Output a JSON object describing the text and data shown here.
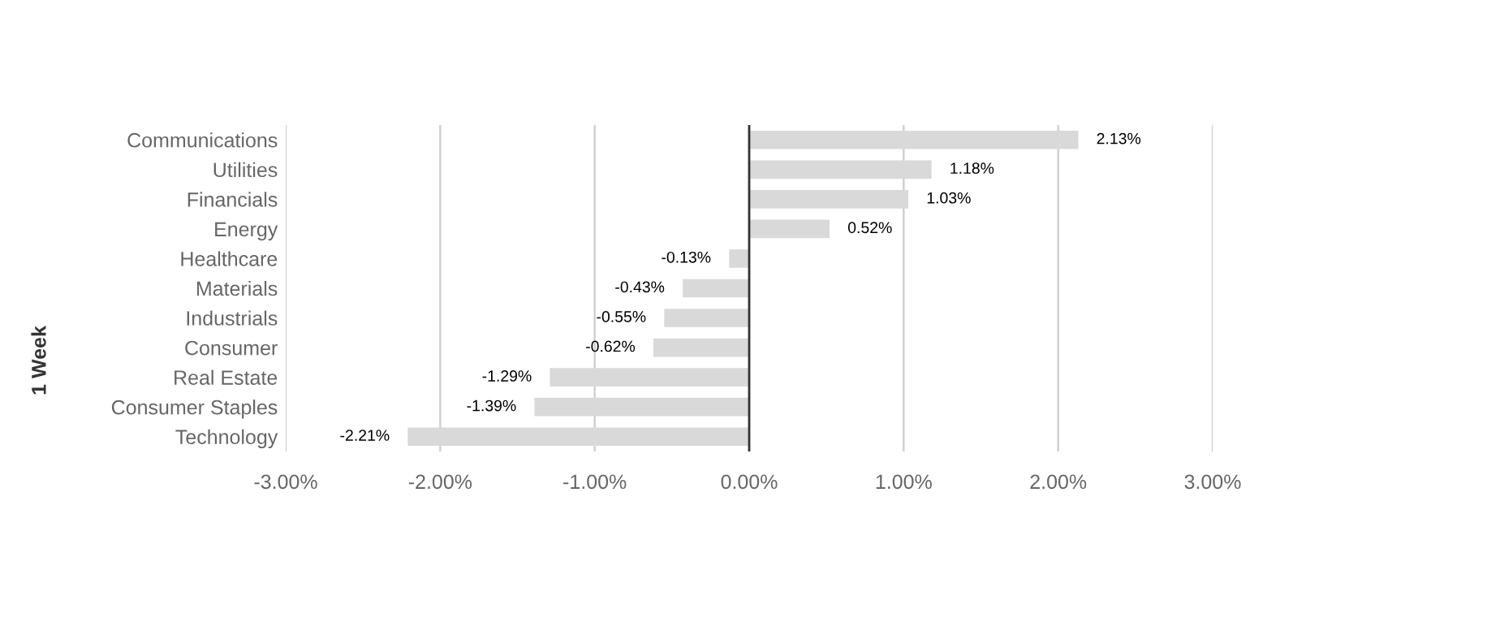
{
  "chart_data": {
    "type": "bar",
    "orientation": "horizontal",
    "ylabel": "1 Week",
    "categories": [
      "Communications",
      "Utilities",
      "Financials",
      "Energy",
      "Healthcare",
      "Materials",
      "Industrials",
      "Consumer",
      "Real Estate",
      "Consumer Staples",
      "Technology"
    ],
    "values": [
      2.13,
      1.18,
      1.03,
      0.52,
      -0.13,
      -0.43,
      -0.55,
      -0.62,
      -1.29,
      -1.39,
      -2.21
    ],
    "value_labels": [
      "2.13%",
      "1.18%",
      "1.03%",
      "0.52%",
      "-0.13%",
      "-0.43%",
      "-0.55%",
      "-0.62%",
      "-1.29%",
      "-1.39%",
      "-2.21%"
    ],
    "color": "#d9d9d9",
    "xlim": [
      -3,
      3
    ],
    "xticks": [
      {
        "value": -3,
        "label": "-3.00%"
      },
      {
        "value": -2,
        "label": "-2.00%"
      },
      {
        "value": -1,
        "label": "-1.00%"
      },
      {
        "value": 0,
        "label": "0.00%"
      },
      {
        "value": 1,
        "label": "1.00%"
      },
      {
        "value": 2,
        "label": "2.00%"
      },
      {
        "value": 3,
        "label": "3.00%"
      }
    ],
    "grid": "x",
    "legend": false
  }
}
